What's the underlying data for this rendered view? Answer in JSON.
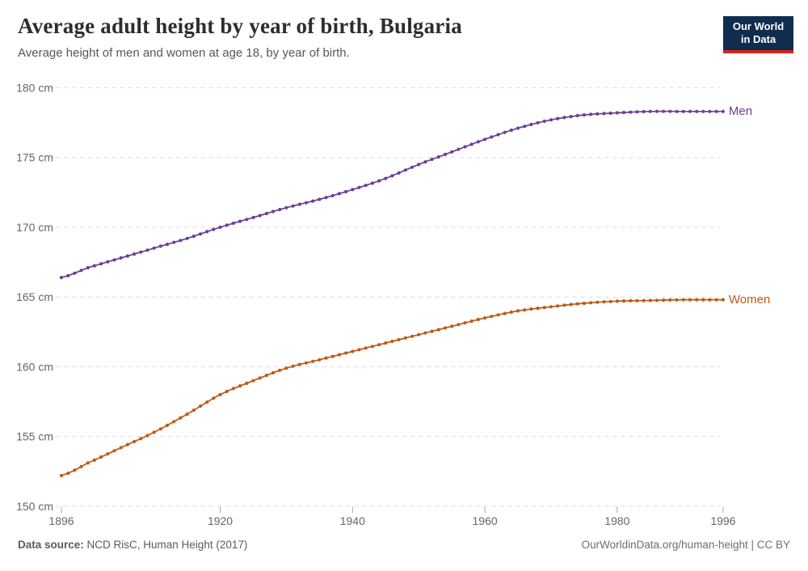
{
  "header": {
    "title": "Average adult height by year of birth, Bulgaria",
    "subtitle": "Average height of men and women at age 18, by year of birth."
  },
  "logo": {
    "line1": "Our World",
    "line2": "in Data",
    "bg_color": "#0f2d4e",
    "bar_color": "#d3271d"
  },
  "footer": {
    "source_label": "Data source:",
    "source_text": " NCD RisC, Human Height (2017)",
    "right_text": "OurWorldinData.org/human-height | CC BY"
  },
  "chart_data": {
    "type": "line",
    "title": "Average adult height by year of birth, Bulgaria",
    "subtitle": "Average height of men and women at age 18, by year of birth.",
    "xlabel": "",
    "ylabel": "",
    "xlim": [
      1896,
      1996
    ],
    "ylim": [
      150,
      180
    ],
    "x_ticks": [
      1896,
      1920,
      1940,
      1960,
      1980,
      1996
    ],
    "y_ticks": [
      150,
      155,
      160,
      165,
      170,
      175,
      180
    ],
    "y_tick_suffix": " cm",
    "grid": "horizontal-dashed",
    "legend_position": "line-end-labels",
    "markers": "one dot per year",
    "colors": {
      "grid": "#dcdcdc",
      "axis_tick": "#a8a8a8",
      "tick_label": "#666666"
    },
    "series": [
      {
        "name": "Men",
        "color": "#6d3e91",
        "years": [
          1896,
          1900,
          1905,
          1910,
          1915,
          1920,
          1925,
          1930,
          1935,
          1940,
          1945,
          1950,
          1955,
          1960,
          1965,
          1970,
          1975,
          1980,
          1985,
          1990,
          1996
        ],
        "values": [
          166.4,
          167.1,
          167.8,
          168.5,
          169.2,
          170.0,
          170.7,
          171.4,
          172.0,
          172.7,
          173.5,
          174.5,
          175.4,
          176.3,
          177.1,
          177.7,
          178.05,
          178.2,
          178.3,
          178.3,
          178.3
        ]
      },
      {
        "name": "Women",
        "color": "#be5915",
        "years": [
          1896,
          1900,
          1905,
          1910,
          1915,
          1920,
          1925,
          1930,
          1935,
          1940,
          1945,
          1950,
          1955,
          1960,
          1965,
          1970,
          1975,
          1980,
          1985,
          1990,
          1996
        ],
        "values": [
          152.2,
          153.1,
          154.2,
          155.3,
          156.6,
          158.0,
          159.0,
          159.9,
          160.5,
          161.1,
          161.7,
          162.3,
          162.9,
          163.5,
          164.0,
          164.3,
          164.55,
          164.7,
          164.75,
          164.8,
          164.8
        ]
      }
    ]
  }
}
